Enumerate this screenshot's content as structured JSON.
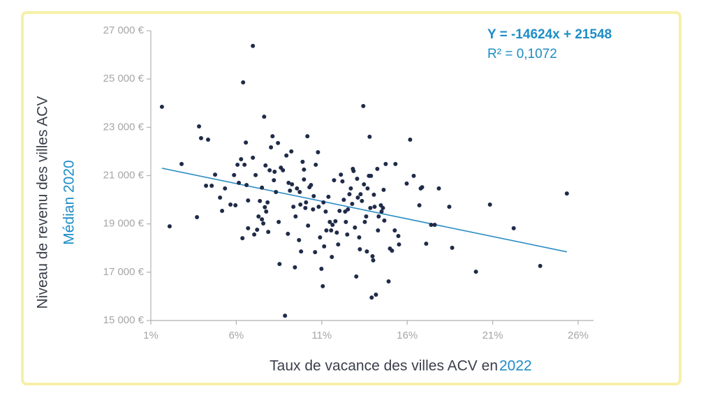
{
  "chart_data": {
    "type": "scatter",
    "annotation": [
      "Y = -14624x + 21548",
      "R² = 0,1072"
    ],
    "xlabel": [
      "Taux de vacance des villes ACV en",
      "2022"
    ],
    "ylabel": [
      "Niveau de revenu des villes ACV",
      "Médian 2020"
    ],
    "xlim": [
      0.01,
      0.26
    ],
    "ylim": [
      15000,
      27000
    ],
    "xticks": [
      {
        "value": 0.01,
        "label": "1%"
      },
      {
        "value": 0.06,
        "label": "6%"
      },
      {
        "value": 0.11,
        "label": "11%"
      },
      {
        "value": 0.16,
        "label": "16%"
      },
      {
        "value": 0.21,
        "label": "21%"
      },
      {
        "value": 0.26,
        "label": "26%"
      }
    ],
    "yticks": [
      {
        "value": 15000,
        "label": "15 000 €"
      },
      {
        "value": 17000,
        "label": "17 000 €"
      },
      {
        "value": 19000,
        "label": "19 000 €"
      },
      {
        "value": 21000,
        "label": "21 000 €"
      },
      {
        "value": 23000,
        "label": "23 000 €"
      },
      {
        "value": 25000,
        "label": "25 000 €"
      },
      {
        "value": 27000,
        "label": "27 000 €"
      }
    ],
    "trendline": {
      "slope": -14624,
      "intercept": 21548,
      "color": "#2b8cc4"
    },
    "series": [
      {
        "color": "#1f2b48",
        "x": [
          0.0165,
          0.021,
          0.028,
          0.037,
          0.0382,
          0.0394,
          0.0423,
          0.0435,
          0.0456,
          0.0476,
          0.0505,
          0.0517,
          0.0534,
          0.0566,
          0.0587,
          0.0595,
          0.0607,
          0.0615,
          0.0628,
          0.0636,
          0.064,
          0.0648,
          0.0656,
          0.066,
          0.0669,
          0.0669,
          0.0697,
          0.0697,
          0.0705,
          0.0713,
          0.0722,
          0.073,
          0.0738,
          0.075,
          0.075,
          0.0758,
          0.0763,
          0.0767,
          0.0771,
          0.0775,
          0.0783,
          0.0787,
          0.0795,
          0.0803,
          0.0812,
          0.082,
          0.0824,
          0.0832,
          0.0844,
          0.0848,
          0.0853,
          0.0861,
          0.0873,
          0.0885,
          0.0893,
          0.0902,
          0.0906,
          0.0914,
          0.0922,
          0.0926,
          0.0934,
          0.0943,
          0.0947,
          0.0955,
          0.0967,
          0.0971,
          0.0975,
          0.0979,
          0.0988,
          0.0996,
          0.0996,
          0.1004,
          0.1008,
          0.1016,
          0.102,
          0.1028,
          0.1037,
          0.1049,
          0.1053,
          0.1061,
          0.1065,
          0.1078,
          0.1082,
          0.109,
          0.1098,
          0.1106,
          0.111,
          0.1114,
          0.1123,
          0.1127,
          0.1139,
          0.1147,
          0.1155,
          0.1159,
          0.1163,
          0.1172,
          0.118,
          0.1188,
          0.1196,
          0.1204,
          0.1212,
          0.1221,
          0.1229,
          0.1237,
          0.1241,
          0.1249,
          0.1253,
          0.1262,
          0.127,
          0.1278,
          0.1282,
          0.1286,
          0.1294,
          0.1302,
          0.1307,
          0.1311,
          0.1319,
          0.1323,
          0.1327,
          0.1335,
          0.1343,
          0.1347,
          0.1352,
          0.136,
          0.1364,
          0.1368,
          0.1376,
          0.138,
          0.1384,
          0.1388,
          0.1392,
          0.1397,
          0.1401,
          0.1405,
          0.1409,
          0.1417,
          0.1425,
          0.1429,
          0.1433,
          0.1446,
          0.145,
          0.1458,
          0.1462,
          0.1466,
          0.1474,
          0.1491,
          0.1499,
          0.1511,
          0.1527,
          0.1531,
          0.1548,
          0.1552,
          0.1597,
          0.1617,
          0.1638,
          0.1671,
          0.1679,
          0.1687,
          0.1711,
          0.174,
          0.1761,
          0.1785,
          0.1846,
          0.1863,
          0.2002,
          0.2084,
          0.2223,
          0.2378,
          0.2534
        ],
        "values": [
          23850,
          18900,
          21480,
          19280,
          23040,
          22550,
          20580,
          22490,
          20580,
          21040,
          20090,
          19540,
          20470,
          19800,
          21020,
          19770,
          21450,
          20700,
          21680,
          18410,
          24860,
          21450,
          22370,
          20610,
          19970,
          18820,
          26370,
          21740,
          18560,
          21020,
          18760,
          19310,
          19950,
          20500,
          19190,
          19020,
          23440,
          19690,
          21420,
          19510,
          19890,
          18670,
          21220,
          22170,
          22630,
          20810,
          21160,
          20320,
          22350,
          19080,
          17340,
          21330,
          21220,
          15200,
          21830,
          18590,
          20700,
          20380,
          22000,
          20640,
          19710,
          17200,
          19310,
          20470,
          18330,
          20320,
          19800,
          17860,
          21570,
          21250,
          20840,
          19660,
          19890,
          22630,
          18930,
          20520,
          20610,
          19600,
          20150,
          17830,
          21450,
          21970,
          19710,
          18440,
          17140,
          16420,
          19890,
          18070,
          19510,
          18730,
          20120,
          19080,
          18730,
          17630,
          18960,
          20810,
          19110,
          18640,
          18150,
          19540,
          21040,
          20760,
          20000,
          19510,
          19080,
          18560,
          19600,
          20230,
          20470,
          19830,
          21280,
          21190,
          18850,
          16820,
          20870,
          20090,
          18440,
          17950,
          20230,
          19950,
          23880,
          20640,
          19080,
          19310,
          17860,
          20470,
          20990,
          22610,
          19660,
          20990,
          15950,
          17660,
          17490,
          20210,
          19710,
          16070,
          21280,
          18730,
          19310,
          19770,
          19510,
          19660,
          20410,
          19140,
          21480,
          16620,
          17980,
          17890,
          18730,
          21480,
          18500,
          18150,
          20670,
          22490,
          20990,
          19770,
          20470,
          20520,
          18180,
          18960,
          18960,
          20470,
          19710,
          18010,
          17020,
          19800,
          18820,
          17260,
          20260
        ]
      }
    ]
  }
}
